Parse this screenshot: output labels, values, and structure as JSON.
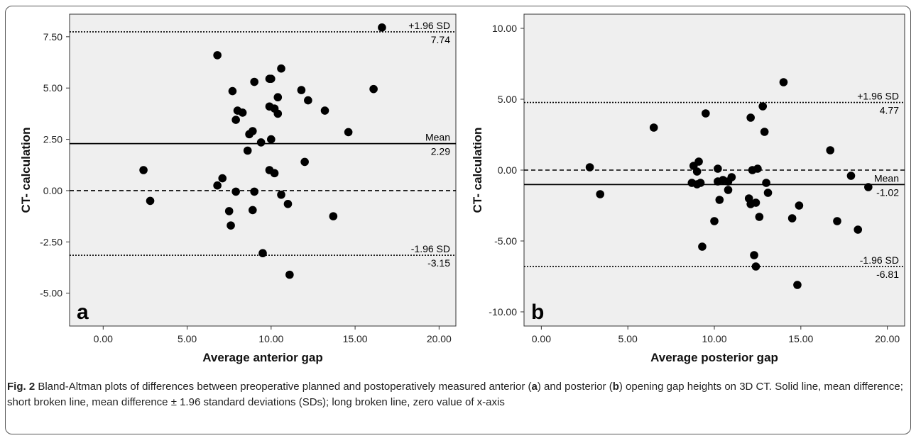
{
  "figure": {
    "caption": {
      "label": "Fig. 2",
      "part1": " Bland-Altman plots of differences between preoperative planned and postoperatively measured anterior (",
      "panel_a": "a",
      "part2": ") and posterior (",
      "panel_b": "b",
      "part3": ") opening gap heights on 3D CT. Solid line, mean difference; short broken line, mean difference ± 1.96 standard deviations (SDs); long broken line, zero value of x-axis"
    }
  },
  "chart_data": [
    {
      "type": "scatter",
      "panel_letter": "a",
      "xlabel": "Average anterior gap",
      "ylabel": "CT- calculation",
      "xlim": [
        -2.0,
        21.0
      ],
      "ylim": [
        -6.6,
        8.6
      ],
      "x_ticks": [
        0,
        5,
        10,
        15,
        20
      ],
      "x_tick_labels": [
        "0.00",
        "5.00",
        "10.00",
        "15.00",
        "20.00"
      ],
      "y_ticks": [
        -5,
        -2.5,
        0,
        2.5,
        5,
        7.5
      ],
      "y_tick_labels": [
        "-5.00",
        "-2.50",
        "0.00",
        "2.50",
        "5.00",
        "7.50"
      ],
      "grid": false,
      "background": "#efefef",
      "reference_lines": [
        {
          "y": 7.74,
          "style": "dotted",
          "label": "+1.96 SD",
          "value_label": "7.74"
        },
        {
          "y": 2.29,
          "style": "solid",
          "label": "Mean",
          "value_label": "2.29"
        },
        {
          "y": 0.0,
          "style": "dashed"
        },
        {
          "y": -3.15,
          "style": "dotted",
          "label": "-1.96 SD",
          "value_label": "-3.15"
        }
      ],
      "points": [
        [
          2.4,
          1.0
        ],
        [
          2.8,
          -0.5
        ],
        [
          6.8,
          6.6
        ],
        [
          6.8,
          0.25
        ],
        [
          7.1,
          0.6
        ],
        [
          7.5,
          -1.0
        ],
        [
          7.6,
          -1.7
        ],
        [
          7.7,
          4.85
        ],
        [
          7.9,
          3.45
        ],
        [
          8.0,
          3.9
        ],
        [
          7.9,
          -0.05
        ],
        [
          8.3,
          3.8
        ],
        [
          8.6,
          1.95
        ],
        [
          8.7,
          2.75
        ],
        [
          8.9,
          2.9
        ],
        [
          9.0,
          5.3
        ],
        [
          8.9,
          -0.95
        ],
        [
          9.0,
          -0.05
        ],
        [
          9.4,
          2.35
        ],
        [
          9.5,
          -3.05
        ],
        [
          9.9,
          5.45
        ],
        [
          9.9,
          4.1
        ],
        [
          10.0,
          5.45
        ],
        [
          10.0,
          2.5
        ],
        [
          9.9,
          1.0
        ],
        [
          10.2,
          4.0
        ],
        [
          10.2,
          0.85
        ],
        [
          10.4,
          4.55
        ],
        [
          10.4,
          3.75
        ],
        [
          10.6,
          5.95
        ],
        [
          10.6,
          -0.2
        ],
        [
          11.0,
          -0.65
        ],
        [
          11.1,
          -4.1
        ],
        [
          11.8,
          4.9
        ],
        [
          12.0,
          1.4
        ],
        [
          12.2,
          4.4
        ],
        [
          13.2,
          3.9
        ],
        [
          13.7,
          -1.25
        ],
        [
          14.6,
          2.85
        ],
        [
          16.1,
          4.95
        ],
        [
          16.6,
          7.95
        ]
      ]
    },
    {
      "type": "scatter",
      "panel_letter": "b",
      "xlabel": "Average posterior gap",
      "ylabel": "CT- calculation",
      "xlim": [
        -1.0,
        21.0
      ],
      "ylim": [
        -11.0,
        11.0
      ],
      "x_ticks": [
        0,
        5,
        10,
        15,
        20
      ],
      "x_tick_labels": [
        "0.00",
        "5.00",
        "10.00",
        "15.00",
        "20.00"
      ],
      "y_ticks": [
        -10,
        -5,
        0,
        5,
        10
      ],
      "y_tick_labels": [
        "-10.00",
        "-5.00",
        "0.00",
        "5.00",
        "10.00"
      ],
      "grid": false,
      "background": "#efefef",
      "reference_lines": [
        {
          "y": 4.77,
          "style": "dotted",
          "label": "+1.96 SD",
          "value_label": "4.77"
        },
        {
          "y": 0.0,
          "style": "dashed"
        },
        {
          "y": -1.02,
          "style": "solid",
          "label": "Mean",
          "value_label": "-1.02"
        },
        {
          "y": -6.81,
          "style": "dotted",
          "label": "-1.96 SD",
          "value_label": "-6.81"
        }
      ],
      "points": [
        [
          2.8,
          0.2
        ],
        [
          3.4,
          -1.7
        ],
        [
          6.5,
          3.0
        ],
        [
          8.7,
          -0.9
        ],
        [
          8.8,
          0.3
        ],
        [
          9.0,
          -1.0
        ],
        [
          9.0,
          -0.1
        ],
        [
          9.1,
          0.6
        ],
        [
          9.2,
          -0.9
        ],
        [
          9.3,
          -5.4
        ],
        [
          9.5,
          4.0
        ],
        [
          10.0,
          -3.6
        ],
        [
          10.2,
          0.1
        ],
        [
          10.2,
          -0.8
        ],
        [
          10.3,
          -2.1
        ],
        [
          10.5,
          -0.7
        ],
        [
          10.8,
          -1.4
        ],
        [
          10.8,
          -0.8
        ],
        [
          11.0,
          -0.5
        ],
        [
          12.0,
          -2.0
        ],
        [
          12.1,
          -2.4
        ],
        [
          12.1,
          3.7
        ],
        [
          12.2,
          0.0
        ],
        [
          12.3,
          -6.0
        ],
        [
          12.4,
          -2.3
        ],
        [
          12.4,
          -6.8
        ],
        [
          12.5,
          0.1
        ],
        [
          12.6,
          -3.3
        ],
        [
          12.8,
          4.5
        ],
        [
          12.9,
          2.7
        ],
        [
          13.0,
          -0.9
        ],
        [
          13.1,
          -1.6
        ],
        [
          14.0,
          6.2
        ],
        [
          14.5,
          -3.4
        ],
        [
          14.8,
          -8.1
        ],
        [
          14.9,
          -2.5
        ],
        [
          16.7,
          1.4
        ],
        [
          17.1,
          -3.6
        ],
        [
          17.9,
          -0.4
        ],
        [
          18.3,
          -4.2
        ],
        [
          18.9,
          -1.2
        ]
      ]
    }
  ]
}
